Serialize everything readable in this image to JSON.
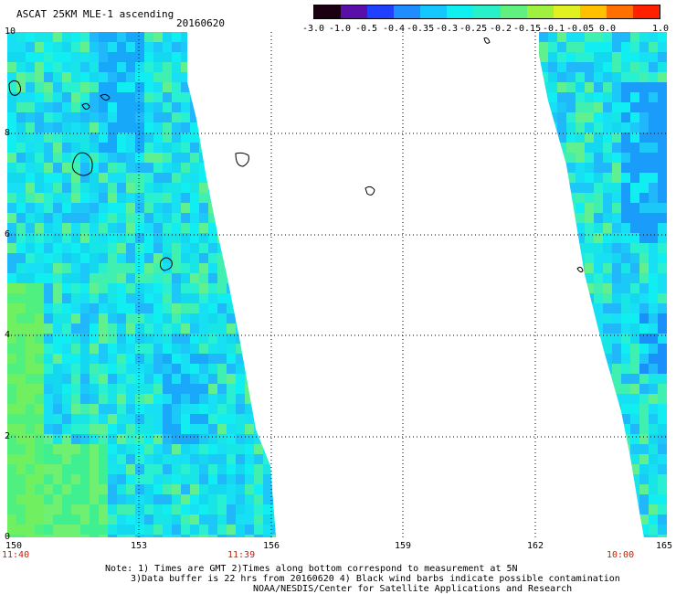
{
  "header": {
    "title": "ASCAT 25KM MLE-1 ascending",
    "date": "20160620"
  },
  "colorbar": {
    "labels": [
      "-3.0",
      "-1.0",
      "-0.5",
      "-0.4",
      "-0.35",
      "-0.3",
      "-0.25",
      "-0.2",
      "-0.15",
      "-0.1",
      "-0.05",
      "0.0",
      "1.0"
    ],
    "colors": [
      "#1a0010",
      "#5a0fa8",
      "#2040ff",
      "#1f8cff",
      "#14c8ff",
      "#10f0f0",
      "#28f0c8",
      "#60f080",
      "#a0f040",
      "#e0f020",
      "#ffc000",
      "#ff7000",
      "#ff2000"
    ]
  },
  "map": {
    "x_ticks": [
      "150",
      "153",
      "156",
      "159",
      "162",
      "165"
    ],
    "y_ticks": [
      "0",
      "2",
      "4",
      "6",
      "8",
      "10"
    ],
    "time_labels": [
      "11:40",
      "11:39",
      "10:00"
    ]
  },
  "note": {
    "line1": "Note: 1) Times are GMT 2)Times along bottom correspond to measurement at 5N",
    "line2": "3)Data buffer is 22 hrs from 20160620 4) Black wind barbs indicate possible contamination",
    "line3": "NOAA/NESDIS/Center for Satellite Applications and Research"
  }
}
